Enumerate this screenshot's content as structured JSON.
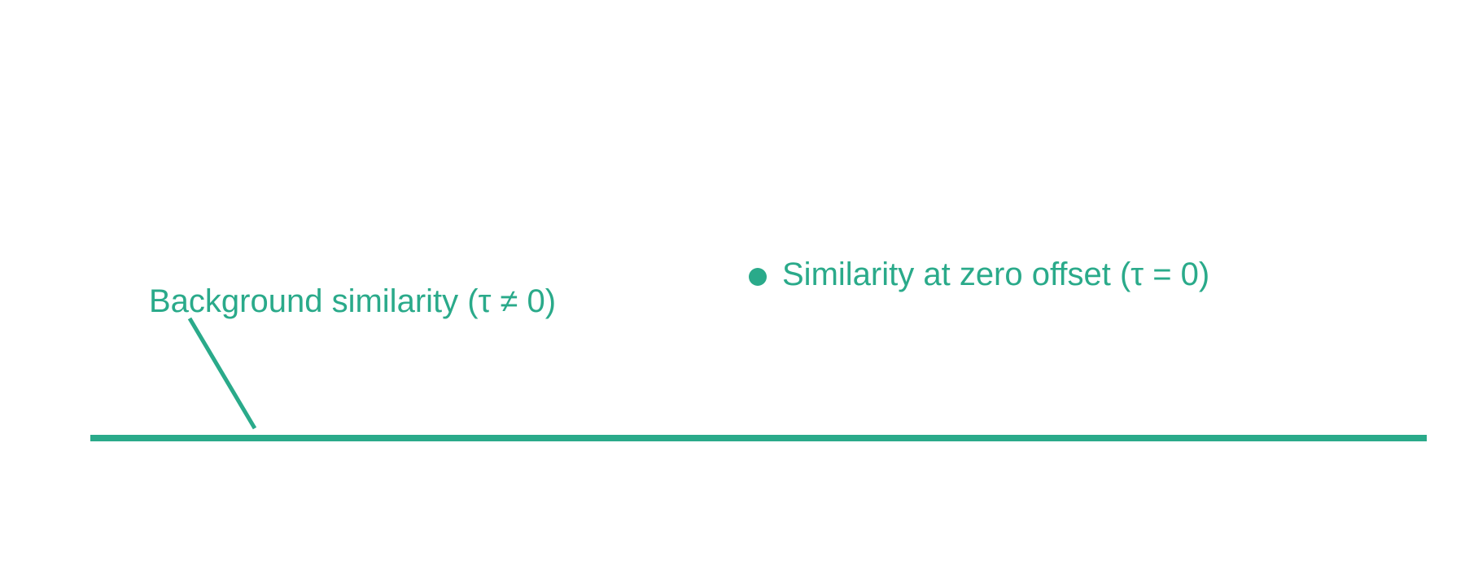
{
  "labels": {
    "background": "Background similarity (τ ≠ 0)",
    "zero_offset": "Similarity at zero offset (τ = 0)"
  },
  "colors": {
    "accent": "#2AAA8A",
    "background": "#FFFFFF"
  }
}
